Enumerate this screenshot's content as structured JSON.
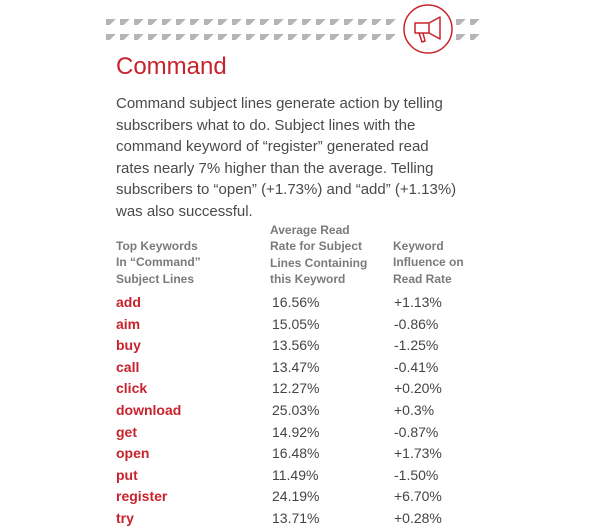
{
  "header": {
    "icon": "megaphone-icon",
    "accent_color": "#c8232c"
  },
  "title": "Command",
  "intro_lines": [
    "Command subject lines generate action by telling",
    "subscribers what to do. Subject lines with the",
    "command keyword of “register” generated read",
    "rates nearly 7% higher than the average. Telling",
    "subscribers to “open” (+1.73%) and “add” (+1.13%)",
    "was also successful."
  ],
  "table": {
    "headers": [
      [
        "Top Keywords",
        "In “Command”",
        "Subject Lines"
      ],
      [
        "Average Read",
        "Rate for Subject",
        "Lines Containing",
        "this Keyword"
      ],
      [
        "Keyword",
        "Influence on",
        "Read Rate"
      ]
    ],
    "rows": [
      {
        "keyword": "add",
        "rate": "16.56%",
        "influence": "+1.13%"
      },
      {
        "keyword": "aim",
        "rate": "15.05%",
        "influence": "-0.86%"
      },
      {
        "keyword": "buy",
        "rate": "13.56%",
        "influence": "-1.25%"
      },
      {
        "keyword": "call",
        "rate": "13.47%",
        "influence": "-0.41%"
      },
      {
        "keyword": "click",
        "rate": "12.27%",
        "influence": "+0.20%"
      },
      {
        "keyword": "download",
        "rate": "25.03%",
        "influence": "+0.3%"
      },
      {
        "keyword": "get",
        "rate": "14.92%",
        "influence": "-0.87%"
      },
      {
        "keyword": "open",
        "rate": "16.48%",
        "influence": "+1.73%"
      },
      {
        "keyword": "put",
        "rate": "11.49%",
        "influence": "-1.50%"
      },
      {
        "keyword": "register",
        "rate": "24.19%",
        "influence": "+6.70%"
      },
      {
        "keyword": "try",
        "rate": "13.71%",
        "influence": "+0.28%"
      }
    ]
  }
}
